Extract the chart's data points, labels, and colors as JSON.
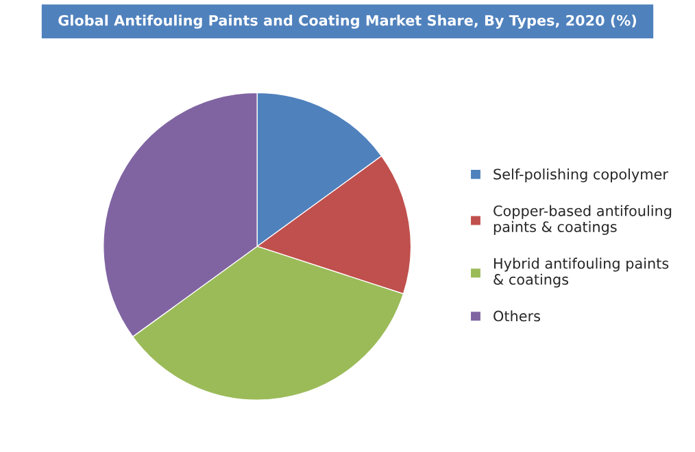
{
  "chart_data": {
    "type": "pie",
    "title": "Global Antifouling Paints and Coating Market Share, By Types, 2020 (%)",
    "categories": [
      "Self-polishing copolymer",
      "Copper-based antifouling\npaints & coatings",
      "Hybrid antifouling paints\n& coatings",
      "Others"
    ],
    "values": [
      15,
      15,
      35,
      35
    ],
    "colors": [
      "#4f81bd",
      "#c0504d",
      "#9bbb59",
      "#8064a2"
    ],
    "legend": "right"
  }
}
